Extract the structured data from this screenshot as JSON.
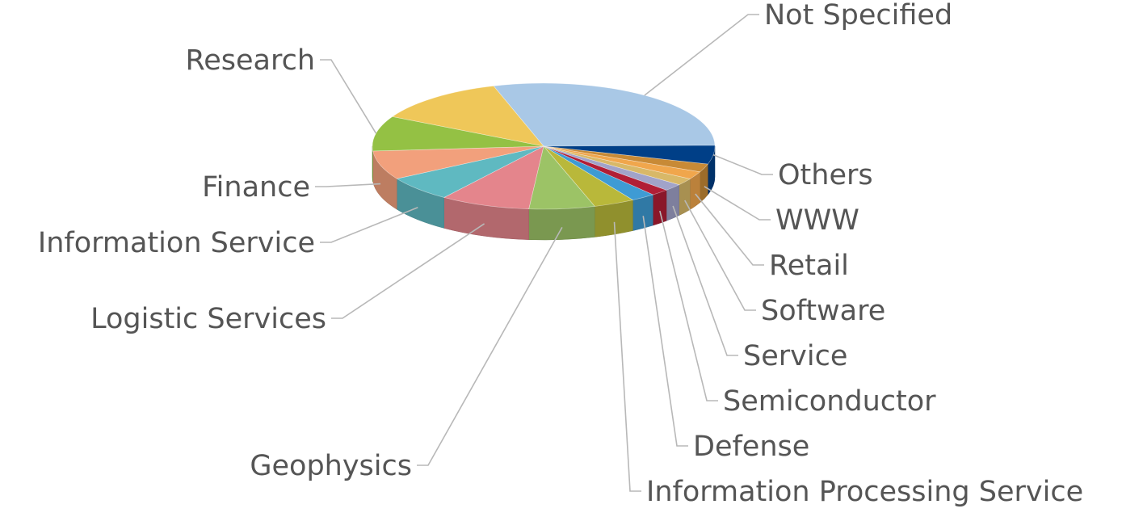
{
  "chart_data": {
    "type": "pie",
    "style": "3d",
    "legend": "none",
    "slices": [
      {
        "label": "Not Specified",
        "value": 29.5,
        "color": "#a9c8e6"
      },
      {
        "label": "Others",
        "value": 4.8,
        "color": "#003f87"
      },
      {
        "label": "WWW",
        "value": 2.1,
        "color": "#c88a36"
      },
      {
        "label": "Retail",
        "value": 2.0,
        "color": "#f0a64c"
      },
      {
        "label": "Software",
        "value": 1.8,
        "color": "#d8b868"
      },
      {
        "label": "Service",
        "value": 1.8,
        "color": "#a1a3c9"
      },
      {
        "label": "Semiconductor",
        "value": 1.7,
        "color": "#b11e36"
      },
      {
        "label": "Defense",
        "value": 2.3,
        "color": "#3e9bd4"
      },
      {
        "label": "Information Processing Service",
        "value": 3.9,
        "color": "#b9b83a"
      },
      {
        "label": "Geophysics",
        "value": 6.2,
        "color": "#9cc366"
      },
      {
        "label": "Logistic Services",
        "value": 8.5,
        "color": "#e4858c"
      },
      {
        "label": "Information Service",
        "value": 6.5,
        "color": "#5fb9c1"
      },
      {
        "label": "Finance",
        "value": 7.4,
        "color": "#f2a07c"
      },
      {
        "label": "Research",
        "value": 9.0,
        "color": "#94c144"
      },
      {
        "label": "Research",
        "value": 12.5,
        "color": "#efc759"
      }
    ]
  }
}
